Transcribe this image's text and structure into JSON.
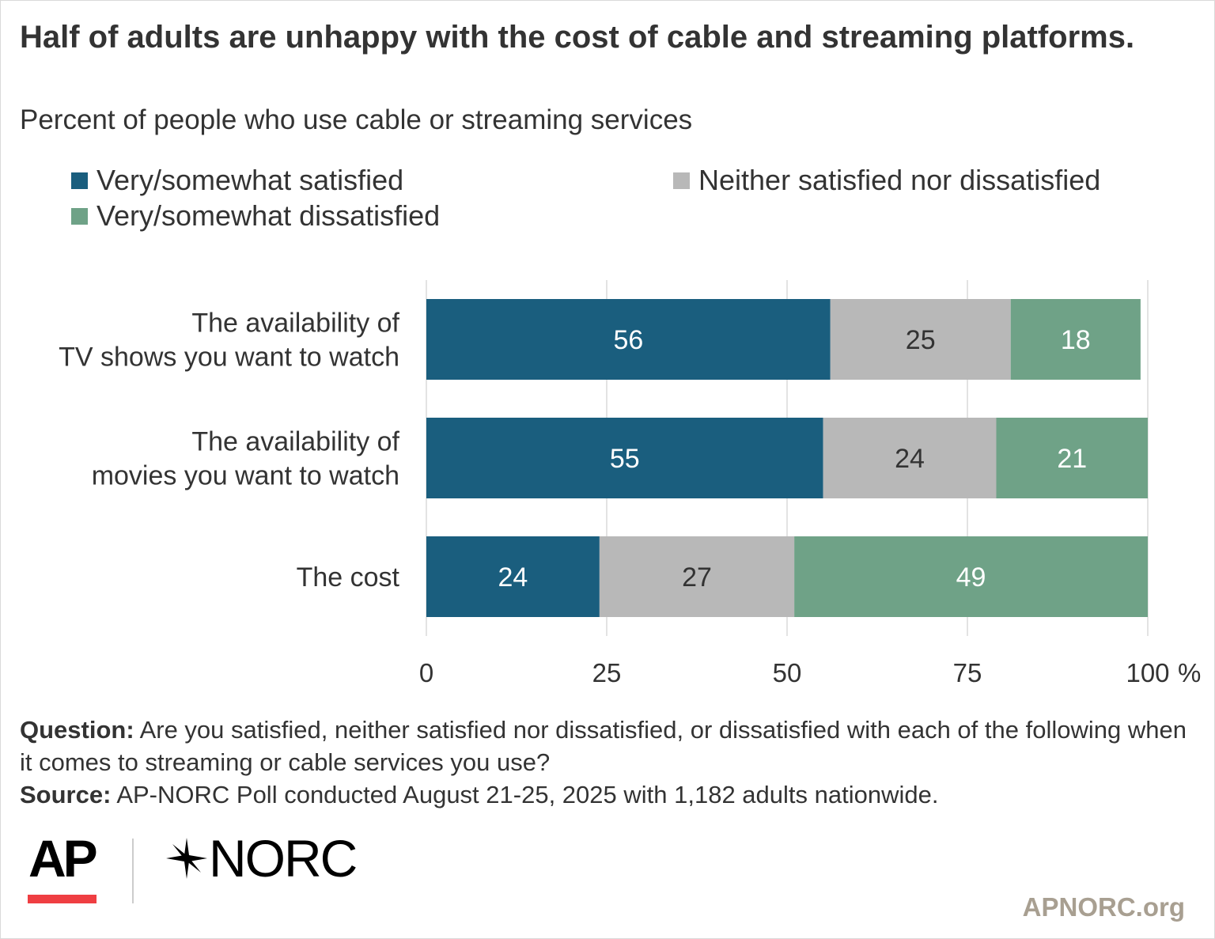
{
  "colors": {
    "satisfied": "#1a5e7e",
    "neither": "#b8b8b8",
    "dissatisfied": "#6fa287",
    "grid": "#e3e3e3",
    "ap_red": "#ef3e42",
    "site_text": "#a89f91"
  },
  "header": {
    "title": "Half of adults are unhappy with the cost of cable and streaming platforms.",
    "subtitle": "Percent of people who use cable or streaming services"
  },
  "legend": {
    "satisfied": "Very/somewhat satisfied",
    "neither": "Neither satisfied nor dissatisfied",
    "dissatisfied": "Very/somewhat dissatisfied"
  },
  "chart_data": {
    "type": "bar",
    "orientation": "horizontal",
    "stacked": true,
    "categories": [
      [
        "The availability of",
        "TV shows you want to watch"
      ],
      [
        "The availability of",
        "movies you want to watch"
      ],
      [
        "The cost"
      ]
    ],
    "series": [
      {
        "name": "Very/somewhat satisfied",
        "key": "satisfied",
        "values": [
          56,
          55,
          24
        ]
      },
      {
        "name": "Neither satisfied nor dissatisfied",
        "key": "neither",
        "values": [
          25,
          24,
          27
        ]
      },
      {
        "name": "Very/somewhat dissatisfied",
        "key": "dissatisfied",
        "values": [
          18,
          21,
          49
        ]
      }
    ],
    "xlim": [
      0,
      100
    ],
    "xticks": [
      0,
      25,
      50,
      75,
      100
    ],
    "xtick_labels": [
      "0",
      "25",
      "50",
      "75",
      "100"
    ],
    "x_unit": "%",
    "grid": true,
    "legend_position": "top"
  },
  "footer": {
    "question_label": "Question:",
    "question_text": "Are you satisfied, neither satisfied nor dissatisfied, or dissatisfied with each of the following when it comes to streaming or cable services you use?",
    "source_label": "Source:",
    "source_text": "AP-NORC Poll conducted August 21-25, 2025 with 1,182 adults nationwide."
  },
  "branding": {
    "ap_logo": "AP",
    "norc_logo": "NORC",
    "site": "APNORC.org"
  }
}
